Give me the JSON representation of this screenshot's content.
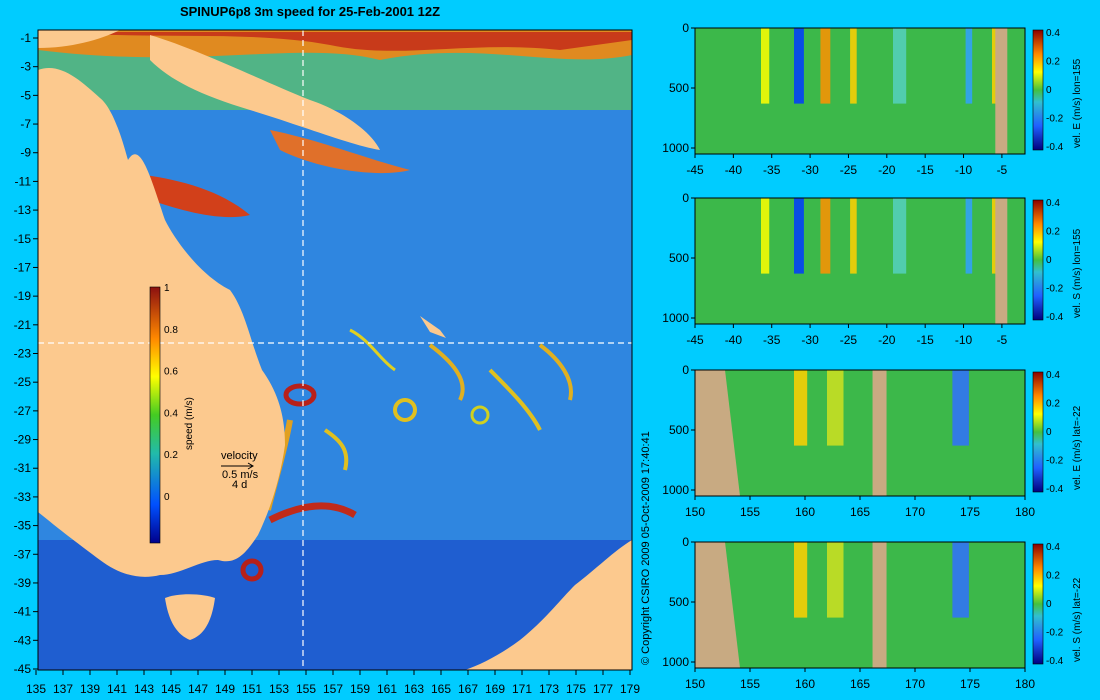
{
  "title": "SPINUP6p8 3m speed for 25-Feb-2001 12Z",
  "copyright": "© Copyright CSIRO 2009   05-Oct-2009 17:40:41",
  "colors": {
    "background": "#00ccff",
    "land": "#fcc98e",
    "ocean": "#2f86e0",
    "section_land": "#c8aa82"
  },
  "map": {
    "x_ticks": [
      "135",
      "137",
      "139",
      "141",
      "143",
      "145",
      "147",
      "149",
      "151",
      "153",
      "155",
      "157",
      "159",
      "161",
      "163",
      "165",
      "167",
      "169",
      "171",
      "173",
      "175",
      "177",
      "179"
    ],
    "y_ticks": [
      "-1",
      "-3",
      "-5",
      "-7",
      "-9",
      "-11",
      "-13",
      "-15",
      "-17",
      "-19",
      "-21",
      "-23",
      "-25",
      "-27",
      "-29",
      "-31",
      "-33",
      "-35",
      "-37",
      "-39",
      "-41",
      "-43",
      "-45"
    ],
    "section_lon": 155,
    "section_lat": -22,
    "colorbar": {
      "label": "speed (m/s)",
      "ticks": [
        "1",
        "0.8",
        "0.6",
        "0.4",
        "0.2",
        "0"
      ],
      "range": [
        0,
        1
      ]
    },
    "velocity_key": {
      "title": "velocity",
      "speed": "0.5 m/s",
      "scale": "4 d"
    }
  },
  "panels": [
    {
      "label": "vel. E (m/s) lon=155",
      "x_ticks": [
        "-45",
        "-40",
        "-35",
        "-30",
        "-25",
        "-20",
        "-15",
        "-10",
        "-5"
      ],
      "y_ticks": [
        "0",
        "500",
        "1000"
      ],
      "cbar_ticks": [
        "0.4",
        "0.2",
        "0",
        "-0.2",
        "-0.4"
      ]
    },
    {
      "label": "vel. S (m/s) lon=155",
      "x_ticks": [
        "-45",
        "-40",
        "-35",
        "-30",
        "-25",
        "-20",
        "-15",
        "-10",
        "-5"
      ],
      "y_ticks": [
        "0",
        "500",
        "1000"
      ],
      "cbar_ticks": [
        "0.4",
        "0.2",
        "0",
        "-0.2",
        "-0.4"
      ]
    },
    {
      "label": "vel. E (m/s) lat=-22",
      "x_ticks": [
        "150",
        "155",
        "160",
        "165",
        "170",
        "175",
        "180"
      ],
      "y_ticks": [
        "0",
        "500",
        "1000"
      ],
      "cbar_ticks": [
        "0.4",
        "0.2",
        "0",
        "-0.2",
        "-0.4"
      ]
    },
    {
      "label": "vel. S (m/s) lat=-22",
      "x_ticks": [
        "150",
        "155",
        "160",
        "165",
        "170",
        "175",
        "180"
      ],
      "y_ticks": [
        "0",
        "500",
        "1000"
      ],
      "cbar_ticks": [
        "0.4",
        "0.2",
        "0",
        "-0.2",
        "-0.4"
      ]
    }
  ]
}
